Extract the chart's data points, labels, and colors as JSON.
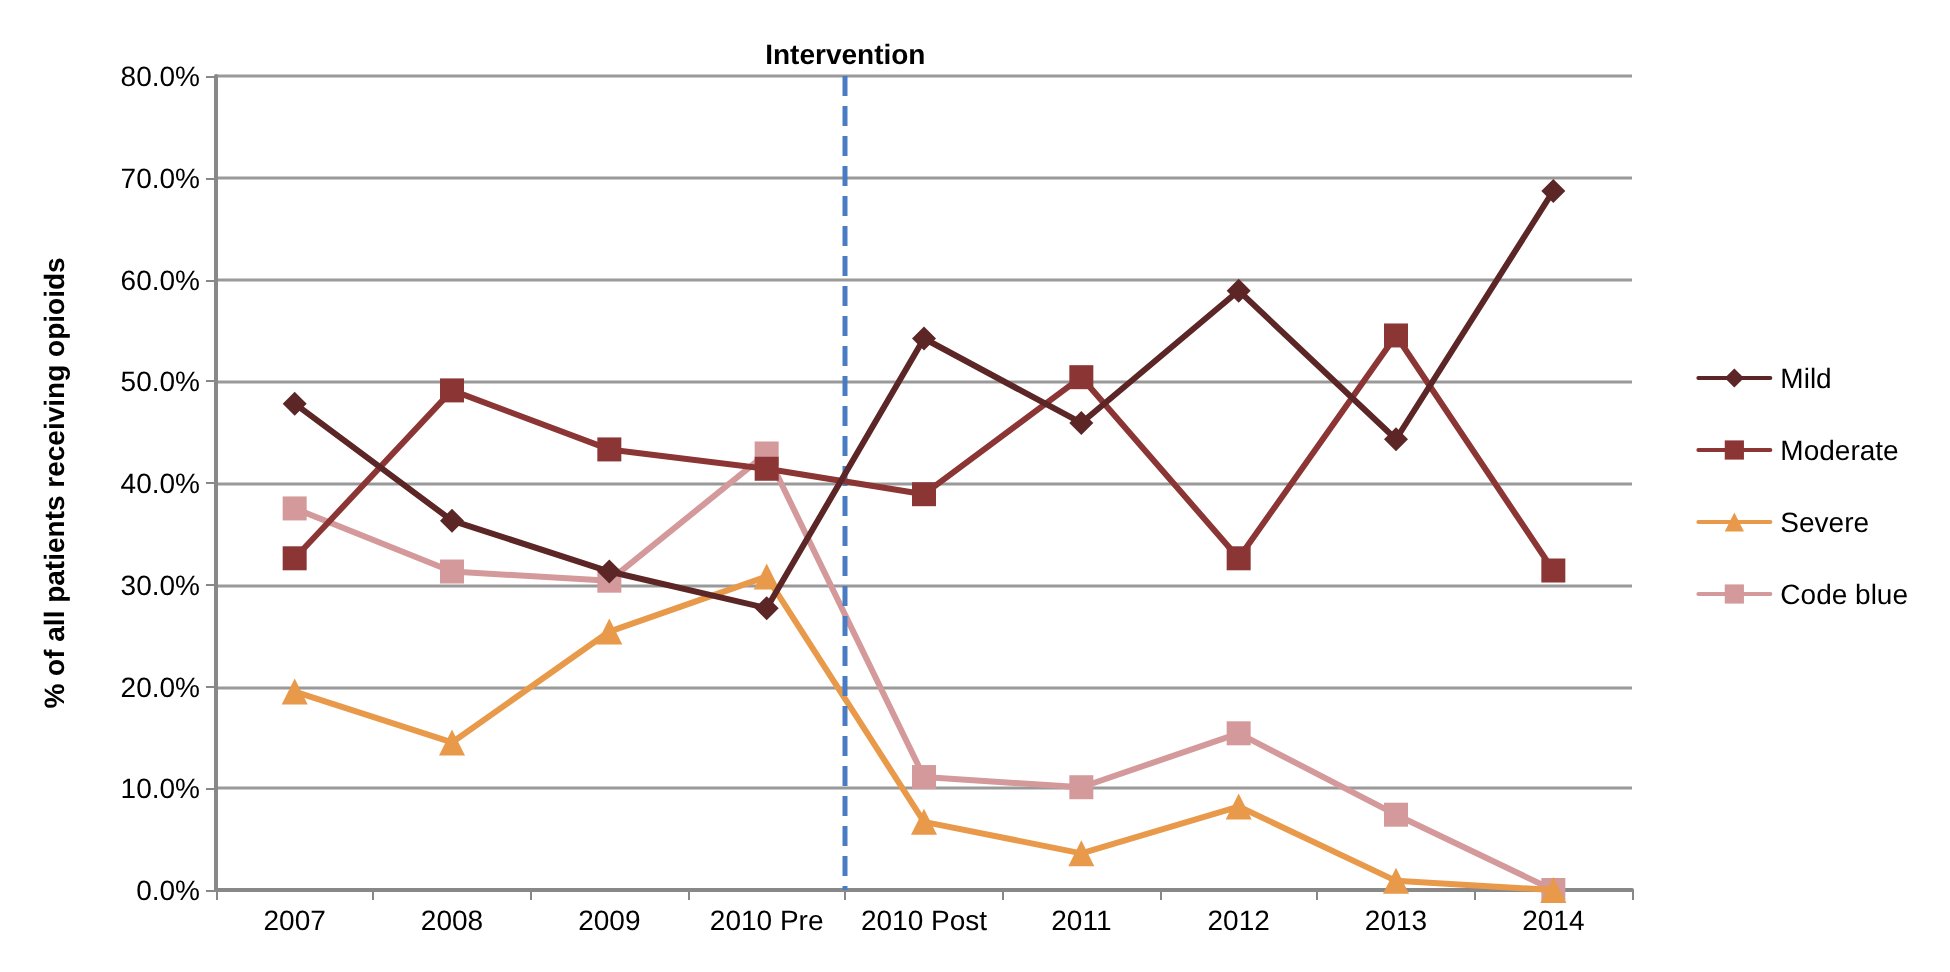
{
  "chart_data": {
    "type": "line",
    "ylabel": "% of all patients receiving opioids",
    "categories": [
      "2007",
      "2008",
      "2009",
      "2010 Pre",
      "2010 Post",
      "2011",
      "2012",
      "2013",
      "2014"
    ],
    "series": [
      {
        "name": "Mild",
        "color": "#5c2626",
        "marker": "diamond",
        "values": [
          47.8,
          36.3,
          31.3,
          27.7,
          54.2,
          45.9,
          58.9,
          44.3,
          68.7
        ]
      },
      {
        "name": "Moderate",
        "color": "#8b3535",
        "marker": "square",
        "values": [
          32.6,
          49.1,
          43.3,
          41.4,
          38.9,
          50.4,
          32.6,
          54.5,
          31.4
        ]
      },
      {
        "name": "Severe",
        "color": "#e8994a",
        "marker": "triangle",
        "values": [
          19.5,
          14.5,
          25.4,
          30.8,
          6.7,
          3.6,
          8.2,
          0.9,
          0
        ]
      },
      {
        "name": "Code blue",
        "color": "#d4999a",
        "marker": "square",
        "values": [
          37.5,
          31.3,
          30.4,
          42.9,
          11.1,
          10.1,
          15.4,
          7.4,
          0
        ]
      }
    ],
    "ylim": [
      0,
      80
    ],
    "yticks": [
      {
        "value": 0,
        "label": "0.0%"
      },
      {
        "value": 10,
        "label": "10.0%"
      },
      {
        "value": 20,
        "label": "20.0%"
      },
      {
        "value": 30,
        "label": "30.0%"
      },
      {
        "value": 40,
        "label": "40.0%"
      },
      {
        "value": 50,
        "label": "50.0%"
      },
      {
        "value": 60,
        "label": "60.0%"
      },
      {
        "value": 70,
        "label": "70.0%"
      },
      {
        "value": 80,
        "label": "80.0%"
      }
    ],
    "grid": "y",
    "legend": "right",
    "line_style": "solid",
    "ref_lines": [
      {
        "axis": "x",
        "value": "2010 Post",
        "label": "Intervention",
        "color": "#4a7cc4",
        "line_style": "dashed"
      }
    ]
  }
}
